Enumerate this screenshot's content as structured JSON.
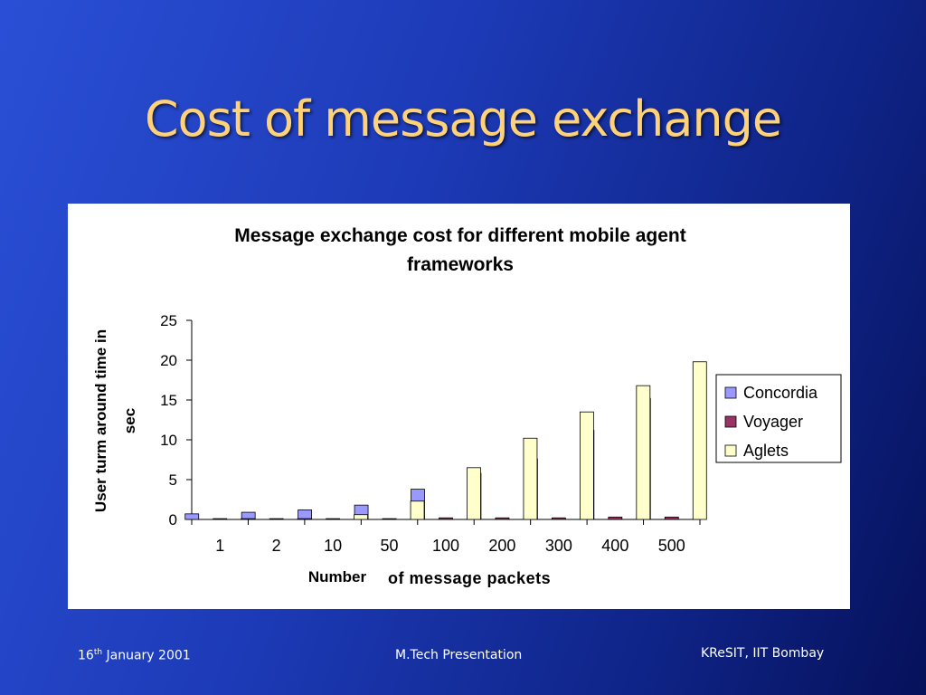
{
  "slide": {
    "title": "Cost of message exchange",
    "footer": {
      "date_day": "16",
      "date_suffix": "th",
      "date_rest": " January 2001",
      "center": "M.Tech Presentation",
      "right": "KReSIT, IIT Bombay"
    }
  },
  "chart_data": {
    "type": "bar",
    "title_lines": [
      "Message exchange cost for different mobile agent",
      "frameworks"
    ],
    "ylabel_lines": [
      "User turm around time in",
      "sec"
    ],
    "xlabel_parts": [
      "Number",
      "of message packets"
    ],
    "categories": [
      "1",
      "2",
      "10",
      "50",
      "100",
      "200",
      "300",
      "400",
      "500"
    ],
    "ylim": [
      0,
      25
    ],
    "yticks": [
      0,
      5,
      10,
      15,
      20,
      25
    ],
    "grid": false,
    "legend_position": "right",
    "series": [
      {
        "name": "Concordia",
        "color": "#9999ff",
        "values": [
          0.7,
          0.9,
          1.2,
          1.8,
          3.8,
          5.8,
          7.6,
          11.2,
          15.2
        ]
      },
      {
        "name": "Voyager",
        "color": "#993366",
        "values": [
          0.1,
          0.1,
          0.1,
          0.1,
          0.2,
          0.2,
          0.2,
          0.3,
          0.3
        ]
      },
      {
        "name": "Aglets",
        "color": "#ffffcc",
        "values": [
          0.1,
          0.1,
          0.6,
          2.3,
          6.5,
          10.2,
          13.5,
          16.8,
          19.8
        ]
      }
    ]
  }
}
